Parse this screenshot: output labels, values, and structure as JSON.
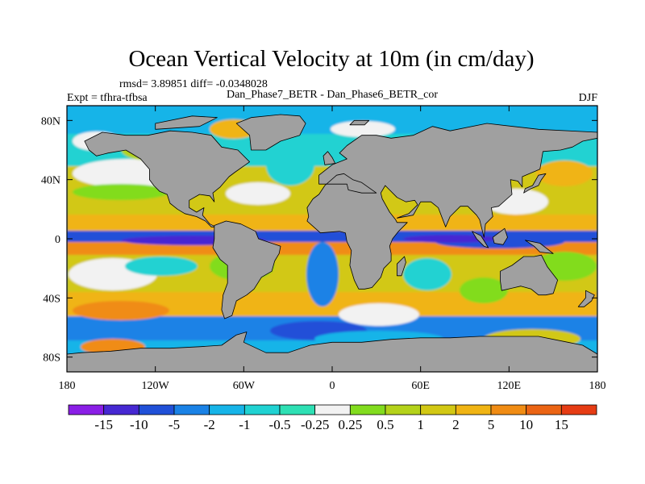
{
  "chart_data": {
    "type": "heatmap",
    "title": "Ocean Vertical Velocity at 10m (in cm/day)",
    "stats": "rmsd= 3.89851 diff= -0.0348028",
    "left_label": "Expt = tfhra-tfbsa",
    "center_label": "Dan_Phase7_BETR - Dan_Phase6_BETR_cor",
    "season": "DJF",
    "xaxis": {
      "range": [
        -180,
        180
      ],
      "ticks": [
        {
          "value": -180,
          "label": "180"
        },
        {
          "value": -120,
          "label": "120W"
        },
        {
          "value": -60,
          "label": "60W"
        },
        {
          "value": 0,
          "label": "0"
        },
        {
          "value": 60,
          "label": "60E"
        },
        {
          "value": 120,
          "label": "120E"
        },
        {
          "value": 180,
          "label": "180"
        }
      ]
    },
    "yaxis": {
      "range": [
        -90,
        90
      ],
      "ticks": [
        {
          "value": 80,
          "label": "80N"
        },
        {
          "value": 40,
          "label": "40N"
        },
        {
          "value": 0,
          "label": "0"
        },
        {
          "value": -40,
          "label": "40S"
        },
        {
          "value": -80,
          "label": "80S"
        }
      ]
    },
    "land_color": "#a0a0a0",
    "colorbar": {
      "levels": [
        "-15",
        "-10",
        "-5",
        "-2",
        "-1",
        "-0.5",
        "-0.25",
        "0.25",
        "0.5",
        "1",
        "2",
        "5",
        "10",
        "15"
      ],
      "colors": [
        "#8a1ee6",
        "#4628d2",
        "#2050d8",
        "#1a82e6",
        "#16b4e8",
        "#20d2d2",
        "#2ee0b4",
        "#f2f2f2",
        "#82dc1e",
        "#b4d21a",
        "#d2c814",
        "#f0b414",
        "#f08c14",
        "#eb6414",
        "#e63c14"
      ]
    }
  }
}
